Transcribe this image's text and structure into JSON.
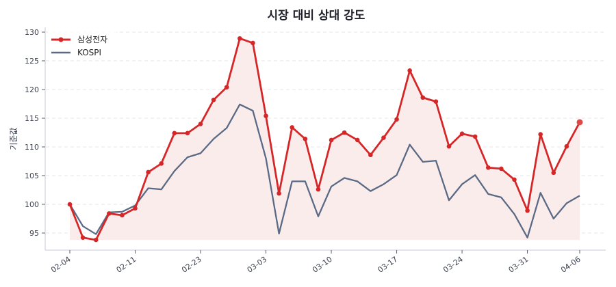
{
  "chart_data": {
    "type": "line",
    "title": "시장 대비 상대 강도",
    "xlabel": "",
    "ylabel": "기준값",
    "ylim": [
      92.5,
      131
    ],
    "yticks": [
      95,
      100,
      105,
      110,
      115,
      120,
      125,
      130
    ],
    "grid": "horizontal dashed",
    "legend_position": "upper left",
    "x": [
      "02-04",
      "02-05",
      "02-06",
      "02-09",
      "02-10",
      "02-11",
      "02-12",
      "02-13",
      "02-19",
      "02-20",
      "02-23",
      "02-24",
      "02-25",
      "02-26",
      "02-27",
      "03-03",
      "03-04",
      "03-05",
      "03-06",
      "03-09",
      "03-10",
      "03-11",
      "03-12",
      "03-13",
      "03-16",
      "03-17",
      "03-18",
      "03-19",
      "03-20",
      "03-23",
      "03-24",
      "03-25",
      "03-26",
      "03-27",
      "03-30",
      "03-31",
      "04-01",
      "04-02",
      "04-03",
      "04-06"
    ],
    "xtick_labels": [
      "02-04",
      "02-11",
      "02-23",
      "03-03",
      "03-10",
      "03-17",
      "03-24",
      "03-31",
      "04-06"
    ],
    "xtick_indices": [
      0,
      5,
      10,
      15,
      20,
      25,
      30,
      35,
      39
    ],
    "series": [
      {
        "name": "삼성전자",
        "color": "#d62728",
        "marker": "circle",
        "fill": "#fbeaea",
        "values": [
          100.0,
          94.2,
          93.8,
          98.4,
          98.1,
          99.3,
          105.6,
          107.1,
          112.4,
          112.4,
          114.0,
          118.2,
          120.4,
          128.9,
          128.1,
          115.4,
          101.9,
          113.4,
          111.4,
          102.6,
          111.2,
          112.5,
          111.2,
          108.6,
          111.6,
          114.8,
          123.3,
          118.6,
          117.9,
          110.1,
          112.3,
          111.8,
          106.4,
          106.2,
          104.3,
          98.9,
          112.2,
          105.5,
          110.1,
          114.3
        ]
      },
      {
        "name": "KOSPI",
        "color": "#5a6a85",
        "marker": "none",
        "values": [
          100.0,
          96.2,
          94.8,
          98.6,
          98.7,
          99.8,
          102.8,
          102.6,
          105.8,
          108.2,
          108.9,
          111.4,
          113.3,
          117.4,
          116.3,
          108.0,
          94.9,
          104.0,
          104.0,
          97.9,
          103.1,
          104.6,
          104.0,
          102.3,
          103.5,
          105.1,
          110.4,
          107.4,
          107.6,
          100.7,
          103.5,
          105.1,
          101.8,
          101.2,
          98.3,
          94.2,
          102.0,
          97.5,
          100.2,
          101.5
        ]
      }
    ]
  },
  "legend": {
    "items": [
      {
        "label": "삼성전자"
      },
      {
        "label": "KOSPI"
      }
    ]
  }
}
